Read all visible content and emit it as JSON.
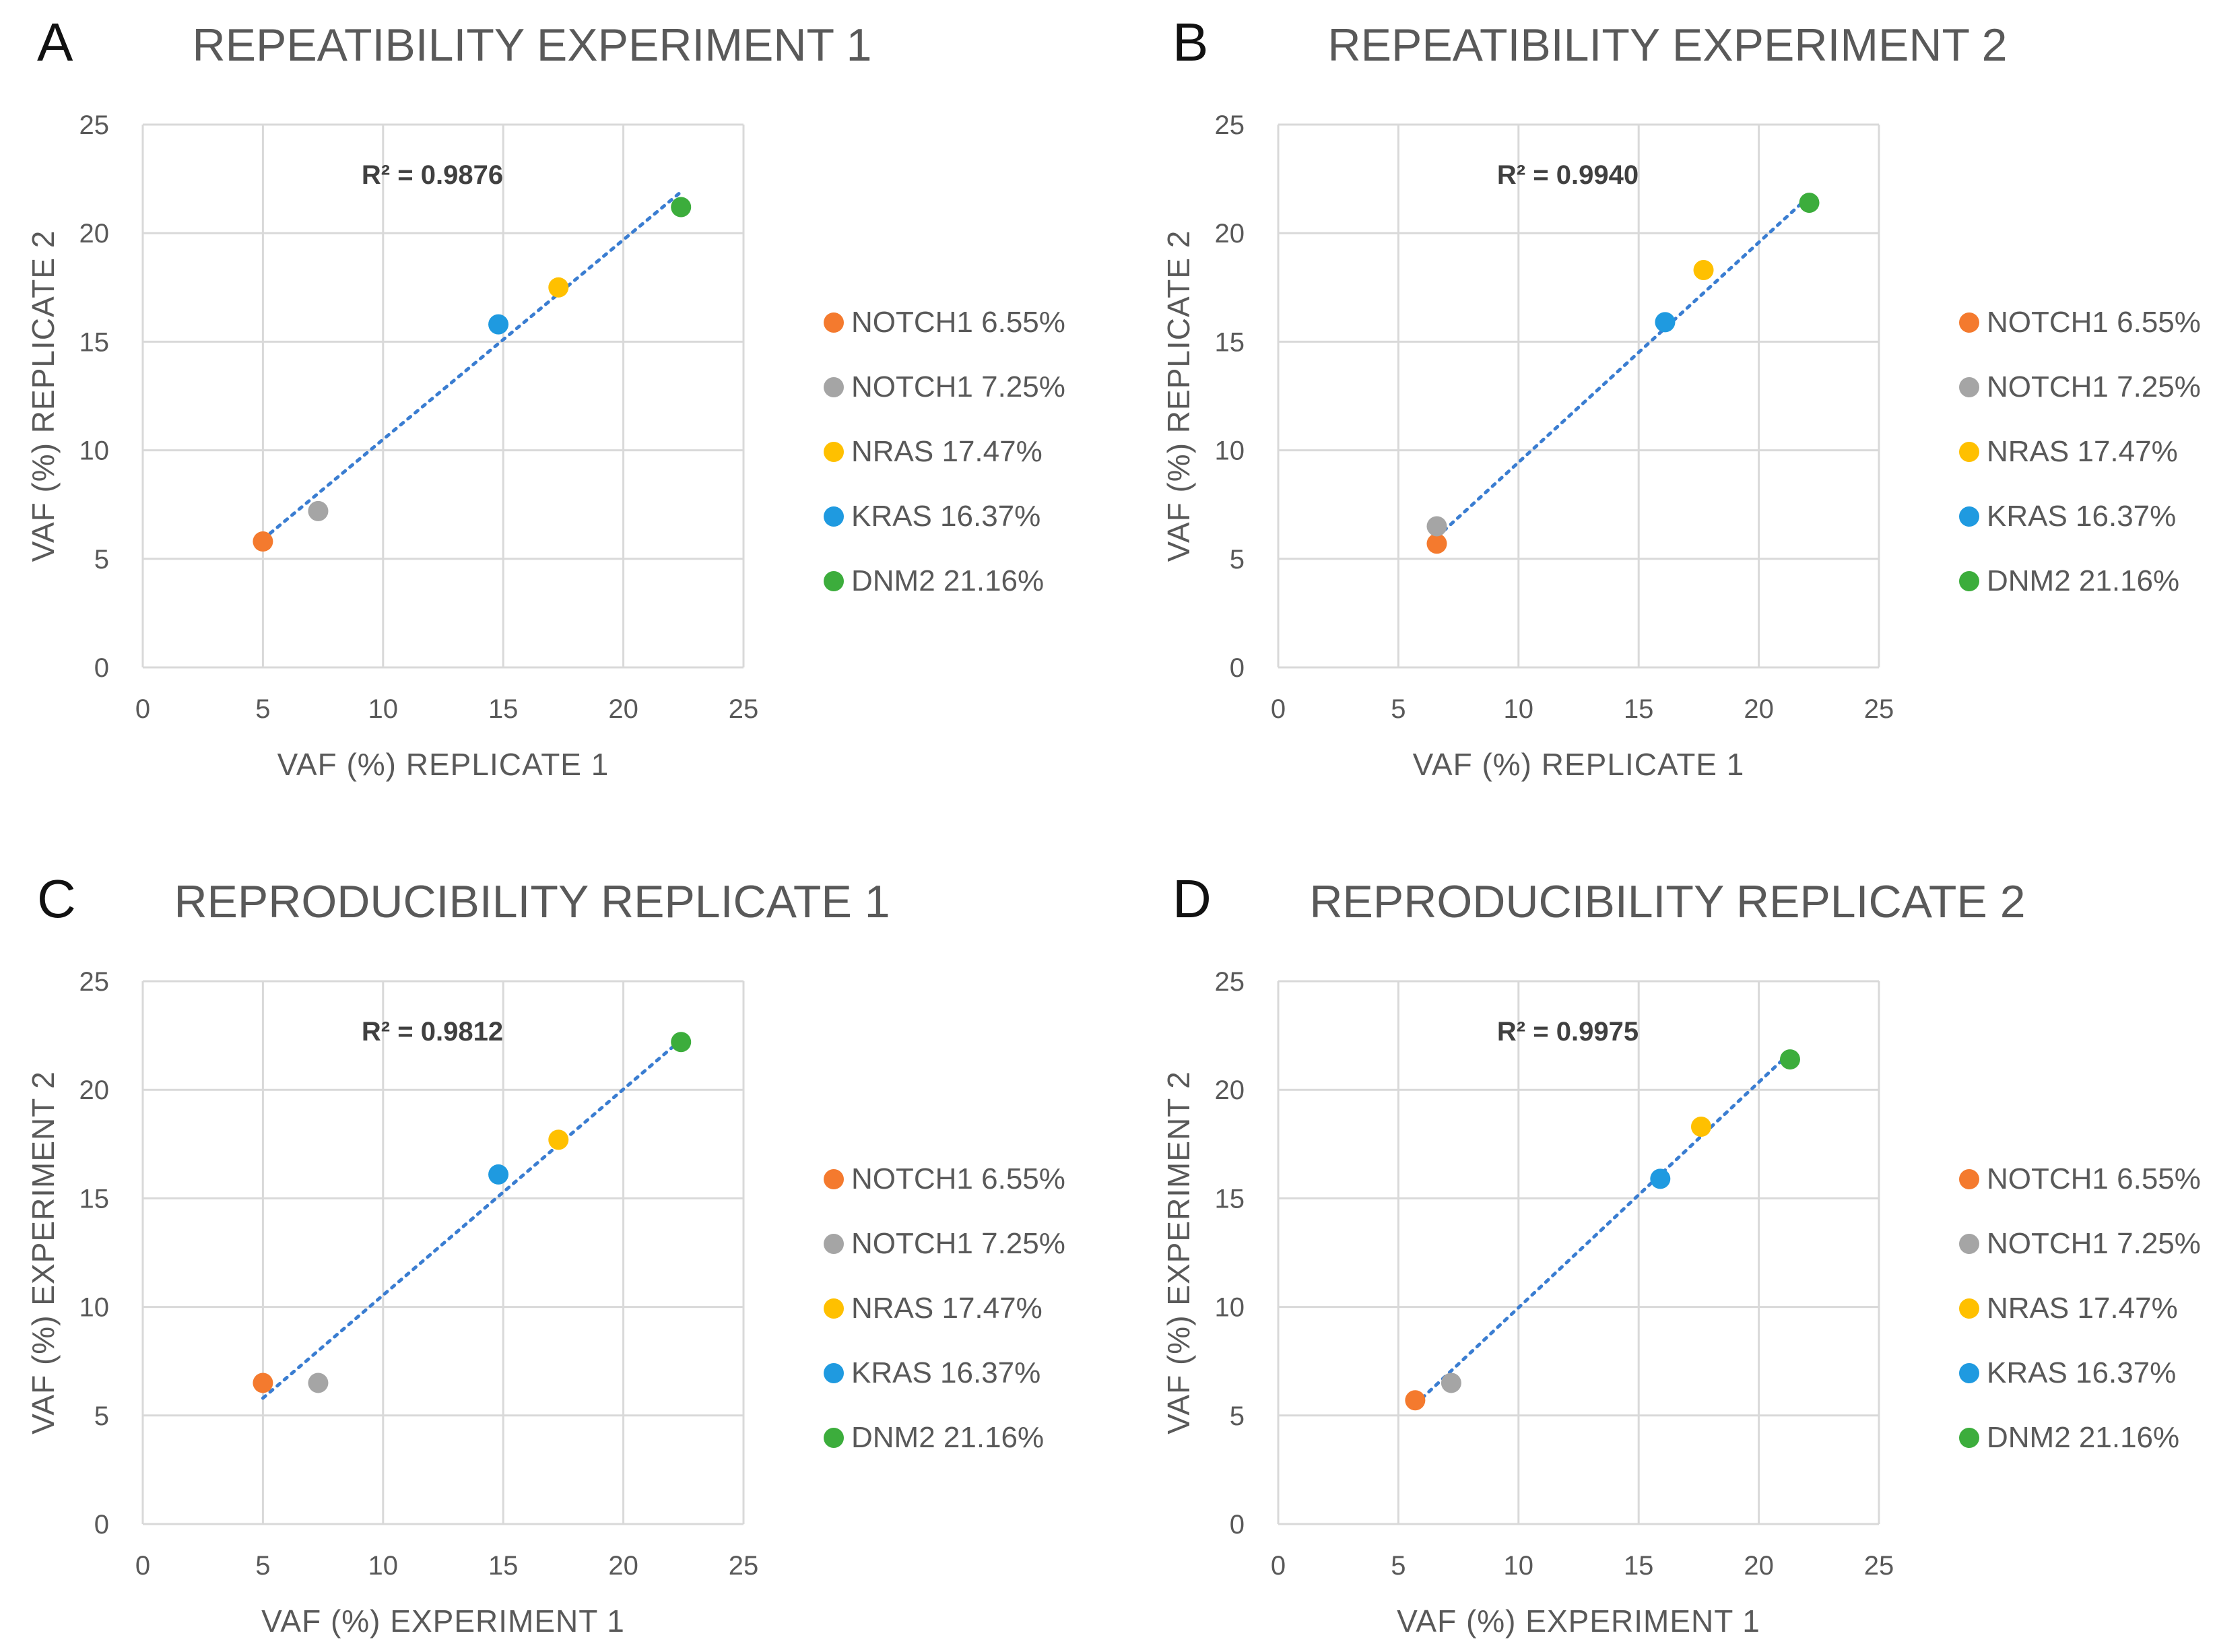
{
  "chart_data": [
    {
      "panel": "A",
      "type": "scatter",
      "title": "REPEATIBILITY EXPERIMENT 1",
      "xlabel": "VAF (%) REPLICATE 1",
      "ylabel": "VAF (%) REPLICATE 2",
      "xlim": [
        0,
        25
      ],
      "ylim": [
        0,
        25
      ],
      "xticks": [
        "0",
        "5",
        "10",
        "15",
        "20",
        "25"
      ],
      "yticks": [
        "0",
        "5",
        "10",
        "15",
        "20",
        "25"
      ],
      "grid": true,
      "legend_position": "right",
      "r2_label": "R² = 0.9876",
      "trendline": {
        "x": [
          5.0,
          22.4
        ],
        "y": [
          5.9,
          21.9
        ],
        "color": "#3a7dd1"
      },
      "series": [
        {
          "name": "NOTCH1 6.55%",
          "color": "#f47a2e",
          "x": [
            5.0
          ],
          "y": [
            5.8
          ]
        },
        {
          "name": "NOTCH1 7.25%",
          "color": "#a5a5a5",
          "x": [
            7.3
          ],
          "y": [
            7.2
          ]
        },
        {
          "name": "NRAS 17.47%",
          "color": "#ffc000",
          "x": [
            17.3
          ],
          "y": [
            17.5
          ]
        },
        {
          "name": "KRAS 16.37%",
          "color": "#1f9ae0",
          "x": [
            14.8
          ],
          "y": [
            15.8
          ]
        },
        {
          "name": "DNM2 21.16%",
          "color": "#3cad3c",
          "x": [
            22.4
          ],
          "y": [
            21.2
          ]
        }
      ]
    },
    {
      "panel": "B",
      "type": "scatter",
      "title": "REPEATIBILITY EXPERIMENT 2",
      "xlabel": "VAF (%) REPLICATE 1",
      "ylabel": "VAF (%) REPLICATE 2",
      "xlim": [
        0,
        25
      ],
      "ylim": [
        0,
        25
      ],
      "xticks": [
        "0",
        "5",
        "10",
        "15",
        "20",
        "25"
      ],
      "yticks": [
        "0",
        "5",
        "10",
        "15",
        "20",
        "25"
      ],
      "grid": true,
      "legend_position": "right",
      "r2_label": "R² = 0.9940",
      "trendline": {
        "x": [
          6.6,
          22.1
        ],
        "y": [
          6.0,
          21.7
        ],
        "color": "#3a7dd1"
      },
      "series": [
        {
          "name": "NOTCH1 6.55%",
          "color": "#f47a2e",
          "x": [
            6.6
          ],
          "y": [
            5.7
          ]
        },
        {
          "name": "NOTCH1 7.25%",
          "color": "#a5a5a5",
          "x": [
            6.6
          ],
          "y": [
            6.5
          ]
        },
        {
          "name": "NRAS 17.47%",
          "color": "#ffc000",
          "x": [
            17.7
          ],
          "y": [
            18.3
          ]
        },
        {
          "name": "KRAS 16.37%",
          "color": "#1f9ae0",
          "x": [
            16.1
          ],
          "y": [
            15.9
          ]
        },
        {
          "name": "DNM2 21.16%",
          "color": "#3cad3c",
          "x": [
            22.1
          ],
          "y": [
            21.4
          ]
        }
      ]
    },
    {
      "panel": "C",
      "type": "scatter",
      "title": "REPRODUCIBILITY REPLICATE 1",
      "xlabel": "VAF (%) EXPERIMENT  1",
      "ylabel": "VAF (%) EXPERIMENT  2",
      "xlim": [
        0,
        25
      ],
      "ylim": [
        0,
        25
      ],
      "xticks": [
        "0",
        "5",
        "10",
        "15",
        "20",
        "25"
      ],
      "yticks": [
        "0",
        "5",
        "10",
        "15",
        "20",
        "25"
      ],
      "grid": true,
      "legend_position": "right",
      "r2_label": "R² = 0.9812",
      "trendline": {
        "x": [
          5.0,
          22.4
        ],
        "y": [
          5.8,
          22.3
        ],
        "color": "#3a7dd1"
      },
      "series": [
        {
          "name": "NOTCH1 6.55%",
          "color": "#f47a2e",
          "x": [
            5.0
          ],
          "y": [
            6.5
          ]
        },
        {
          "name": "NOTCH1 7.25%",
          "color": "#a5a5a5",
          "x": [
            7.3
          ],
          "y": [
            6.5
          ]
        },
        {
          "name": "NRAS 17.47%",
          "color": "#ffc000",
          "x": [
            17.3
          ],
          "y": [
            17.7
          ]
        },
        {
          "name": "KRAS 16.37%",
          "color": "#1f9ae0",
          "x": [
            14.8
          ],
          "y": [
            16.1
          ]
        },
        {
          "name": "DNM2 21.16%",
          "color": "#3cad3c",
          "x": [
            22.4
          ],
          "y": [
            22.2
          ]
        }
      ]
    },
    {
      "panel": "D",
      "type": "scatter",
      "title": "REPRODUCIBILITY REPLICATE 2",
      "xlabel": "VAF (%) EXPERIMENT  1",
      "ylabel": "VAF (%) EXPERIMENT  2",
      "xlim": [
        0,
        25
      ],
      "ylim": [
        0,
        25
      ],
      "xticks": [
        "0",
        "5",
        "10",
        "15",
        "20",
        "25"
      ],
      "yticks": [
        "0",
        "5",
        "10",
        "15",
        "20",
        "25"
      ],
      "grid": true,
      "legend_position": "right",
      "r2_label": "R² = 0.9975",
      "trendline": {
        "x": [
          5.7,
          21.3
        ],
        "y": [
          5.5,
          21.7
        ],
        "color": "#3a7dd1"
      },
      "series": [
        {
          "name": "NOTCH1 6.55%",
          "color": "#f47a2e",
          "x": [
            5.7
          ],
          "y": [
            5.7
          ]
        },
        {
          "name": "NOTCH1 7.25%",
          "color": "#a5a5a5",
          "x": [
            7.2
          ],
          "y": [
            6.5
          ]
        },
        {
          "name": "NRAS 17.47%",
          "color": "#ffc000",
          "x": [
            17.6
          ],
          "y": [
            18.3
          ]
        },
        {
          "name": "KRAS 16.37%",
          "color": "#1f9ae0",
          "x": [
            15.9
          ],
          "y": [
            15.9
          ]
        },
        {
          "name": "DNM2 21.16%",
          "color": "#3cad3c",
          "x": [
            21.3
          ],
          "y": [
            21.4
          ]
        }
      ]
    }
  ]
}
